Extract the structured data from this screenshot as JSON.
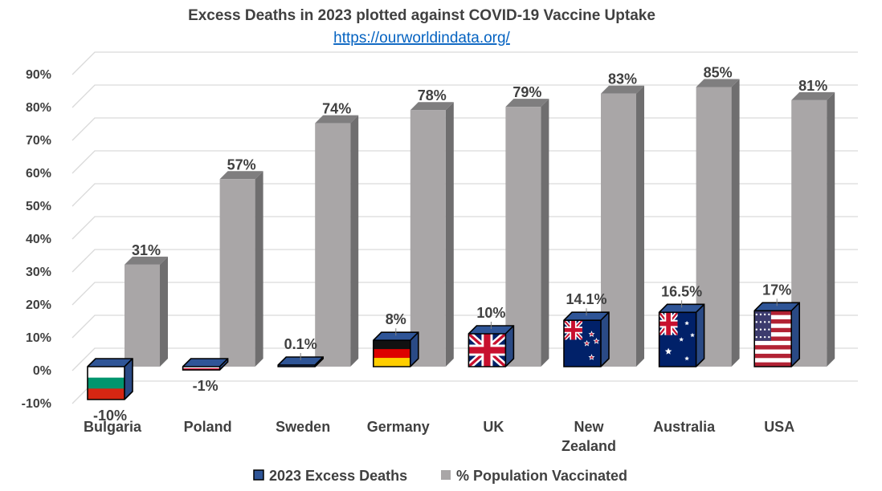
{
  "chart_data": {
    "type": "bar",
    "title": "Excess Deaths in 2023 plotted against COVID-19 Vaccine Uptake",
    "subtitle": "https://ourworldindata.org/",
    "categories": [
      "Bulgaria",
      "Poland",
      "Sweden",
      "Germany",
      "UK",
      "New Zealand",
      "Australia",
      "USA"
    ],
    "category_lines": [
      [
        "Bulgaria"
      ],
      [
        "Poland"
      ],
      [
        "Sweden"
      ],
      [
        "Germany"
      ],
      [
        "UK"
      ],
      [
        "New",
        "Zealand"
      ],
      [
        "Australia"
      ],
      [
        "USA"
      ]
    ],
    "series": [
      {
        "name": "2023 Excess Deaths",
        "values": [
          -10,
          -1,
          0.1,
          8,
          10,
          14.1,
          16.5,
          17
        ],
        "labels": [
          "-10%",
          "-1%",
          "0.1%",
          "8%",
          "10%",
          "14.1%",
          "16.5%",
          "17%"
        ],
        "color": "#2f5597",
        "fill": "country-flags"
      },
      {
        "name": "% Population Vaccinated",
        "values": [
          31,
          57,
          74,
          78,
          79,
          83,
          85,
          81
        ],
        "labels": [
          "31%",
          "57%",
          "74%",
          "78%",
          "79%",
          "83%",
          "85%",
          "81%"
        ],
        "color": "#a9a6a7"
      }
    ],
    "ylim": [
      -10,
      90
    ],
    "yticks": [
      -10,
      0,
      10,
      20,
      30,
      40,
      50,
      60,
      70,
      80,
      90
    ],
    "ytick_labels": [
      "-10%",
      "0%",
      "10%",
      "20%",
      "30%",
      "40%",
      "50%",
      "60%",
      "70%",
      "80%",
      "90%"
    ],
    "grid": true,
    "legend": "bottom",
    "style": "3d-clustered-column",
    "xlabel": "",
    "ylabel": ""
  },
  "colors": {
    "text": "#404040",
    "link": "#0563c1",
    "grid": "#d9d9d9",
    "vacc_front": "#a9a6a7",
    "vacc_side": "#6f6e6f",
    "vacc_top": "#7f7e7f",
    "deaths_top": "#2f5597",
    "deaths_side": "#2a4a85"
  }
}
